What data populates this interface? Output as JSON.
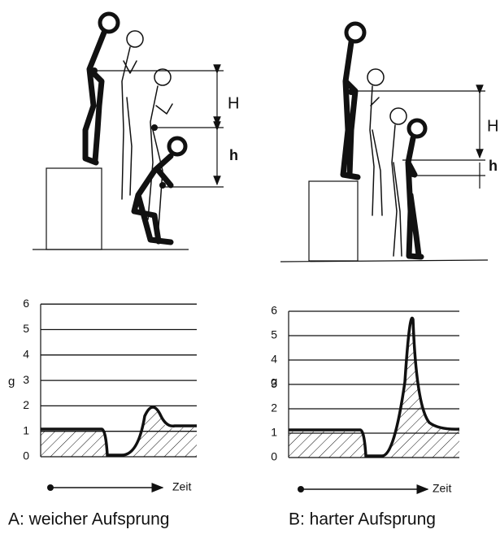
{
  "panels": [
    {
      "labels": {
        "H": "H",
        "h": "h"
      },
      "chart": {
        "y_label": "g",
        "yticks": [
          0,
          1,
          2,
          3,
          4,
          5,
          6
        ],
        "x_label": "Zeit"
      },
      "caption": "A: weicher Aufsprung"
    },
    {
      "labels": {
        "H": "H",
        "h": "h"
      },
      "chart": {
        "y_label": "g",
        "yticks": [
          0,
          1,
          2,
          3,
          4,
          5,
          6
        ],
        "x_label": "Zeit"
      },
      "caption": "B: harter Aufsprung"
    }
  ]
}
